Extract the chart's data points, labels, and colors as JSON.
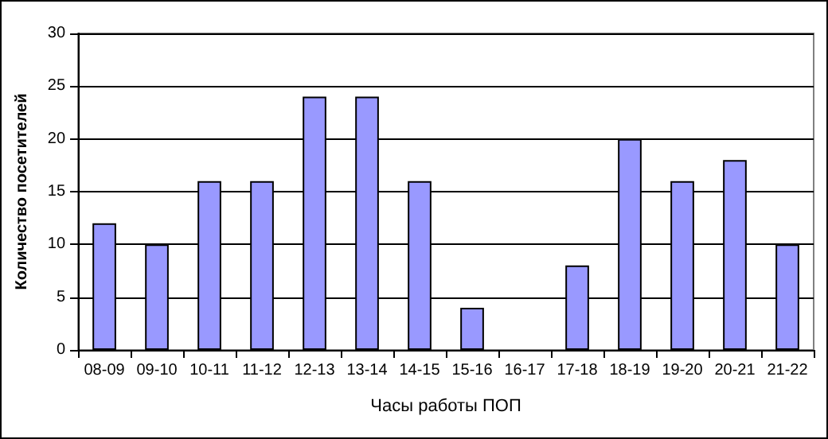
{
  "chart_data": {
    "type": "bar",
    "xlabel": "Часы работы ПОП",
    "ylabel": "Количество посетителей",
    "categories": [
      "08-09",
      "09-10",
      "10-11",
      "11-12",
      "12-13",
      "13-14",
      "14-15",
      "15-16",
      "16-17",
      "17-18",
      "18-19",
      "19-20",
      "20-21",
      "21-22"
    ],
    "values": [
      12,
      10,
      16,
      16,
      24,
      24,
      16,
      4,
      0,
      8,
      20,
      16,
      18,
      10
    ],
    "color": "#9999ff",
    "ylim": [
      0,
      30
    ],
    "yticks": [
      0,
      5,
      10,
      15,
      20,
      25,
      30
    ],
    "grid": "y"
  }
}
